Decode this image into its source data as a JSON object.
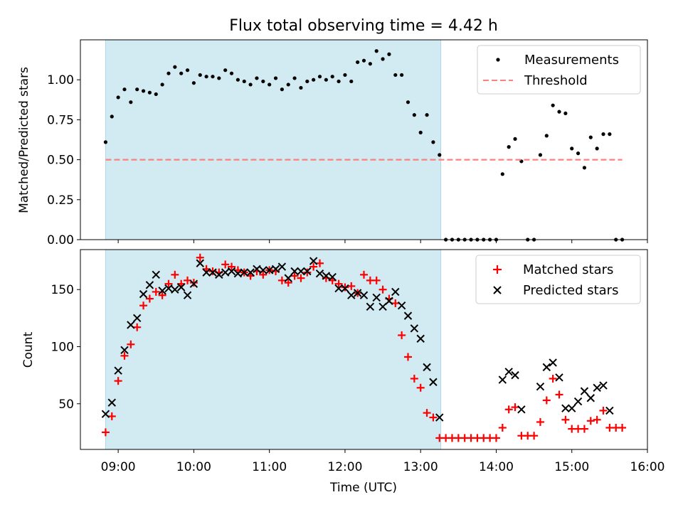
{
  "chart_data": [
    {
      "type": "scatter",
      "title": "Flux total observing time = 4.42 h",
      "ylabel": "Matched/Predicted stars",
      "xlim": [
        "08:30",
        "16:00"
      ],
      "ylim": [
        0,
        1.25
      ],
      "yticks": [
        "0.00",
        "0.25",
        "0.50",
        "0.75",
        "1.00"
      ],
      "ytick_values": [
        0,
        0.25,
        0.5,
        0.75,
        1.0
      ],
      "shaded_region": {
        "start": "08:50",
        "end": "13:16",
        "color": "#add8e6"
      },
      "legend": {
        "position": "top-right",
        "entries": [
          "Measurements",
          "Threshold"
        ]
      },
      "series": [
        {
          "name": "Measurements",
          "marker": "dot",
          "color": "#000000",
          "x": [
            "08:50",
            "08:55",
            "09:00",
            "09:05",
            "09:10",
            "09:15",
            "09:20",
            "09:25",
            "09:30",
            "09:35",
            "09:40",
            "09:45",
            "09:50",
            "09:55",
            "10:00",
            "10:05",
            "10:10",
            "10:15",
            "10:20",
            "10:25",
            "10:30",
            "10:35",
            "10:40",
            "10:45",
            "10:50",
            "10:55",
            "11:00",
            "11:05",
            "11:10",
            "11:15",
            "11:20",
            "11:25",
            "11:30",
            "11:35",
            "11:40",
            "11:45",
            "11:50",
            "11:55",
            "12:00",
            "12:05",
            "12:10",
            "12:15",
            "12:20",
            "12:25",
            "12:30",
            "12:35",
            "12:40",
            "12:45",
            "12:50",
            "12:55",
            "13:00",
            "13:05",
            "13:10",
            "13:15",
            "13:20",
            "13:25",
            "13:30",
            "13:35",
            "13:40",
            "13:45",
            "13:50",
            "13:55",
            "14:00",
            "14:05",
            "14:10",
            "14:15",
            "14:20",
            "14:25",
            "14:30",
            "14:35",
            "14:40",
            "14:45",
            "14:50",
            "14:55",
            "15:00",
            "15:05",
            "15:10",
            "15:15",
            "15:20",
            "15:25",
            "15:30",
            "15:35",
            "15:40"
          ],
          "y": [
            0.61,
            0.77,
            0.89,
            0.94,
            0.86,
            0.94,
            0.93,
            0.92,
            0.91,
            0.97,
            1.04,
            1.08,
            1.04,
            1.06,
            0.98,
            1.03,
            1.02,
            1.02,
            1.01,
            1.06,
            1.04,
            1.0,
            0.99,
            0.97,
            1.01,
            0.99,
            0.97,
            1.01,
            0.94,
            0.97,
            1.01,
            0.95,
            0.99,
            1.0,
            1.02,
            1.0,
            1.02,
            0.99,
            1.03,
            0.99,
            1.11,
            1.12,
            1.1,
            1.18,
            1.13,
            1.16,
            1.03,
            1.03,
            0.86,
            0.78,
            0.67,
            0.78,
            0.61,
            0.53,
            0,
            0,
            0,
            0,
            0,
            0,
            0,
            0,
            0,
            0.41,
            0.58,
            0.63,
            0.49,
            0,
            0,
            0.53,
            0.65,
            0.84,
            0.8,
            0.79,
            0.57,
            0.54,
            0.45,
            0.64,
            0.57,
            0.66,
            0.66,
            0,
            0
          ]
        },
        {
          "name": "Threshold",
          "style": "dashed",
          "color": "#ff7f7f",
          "x": [
            "08:50",
            "15:40"
          ],
          "y": [
            0.5,
            0.5
          ]
        }
      ]
    },
    {
      "type": "scatter",
      "xlabel": "Time (UTC)",
      "ylabel": "Count",
      "xlim": [
        "08:30",
        "16:00"
      ],
      "ylim": [
        10,
        185
      ],
      "xticks": [
        "09:00",
        "10:00",
        "11:00",
        "12:00",
        "13:00",
        "14:00",
        "15:00",
        "16:00"
      ],
      "yticks": [
        "50",
        "100",
        "150"
      ],
      "ytick_values": [
        50,
        100,
        150
      ],
      "shaded_region": {
        "start": "08:50",
        "end": "13:16",
        "color": "#add8e6"
      },
      "legend": {
        "position": "top-right",
        "entries": [
          "Matched stars",
          "Predicted stars"
        ]
      },
      "series": [
        {
          "name": "Matched stars",
          "marker": "plus",
          "color": "#ff0000",
          "x": [
            "08:50",
            "08:55",
            "09:00",
            "09:05",
            "09:10",
            "09:15",
            "09:20",
            "09:25",
            "09:30",
            "09:35",
            "09:40",
            "09:45",
            "09:50",
            "09:55",
            "10:00",
            "10:05",
            "10:10",
            "10:15",
            "10:20",
            "10:25",
            "10:30",
            "10:35",
            "10:40",
            "10:45",
            "10:50",
            "10:55",
            "11:00",
            "11:05",
            "11:10",
            "11:15",
            "11:20",
            "11:25",
            "11:30",
            "11:35",
            "11:40",
            "11:45",
            "11:50",
            "11:55",
            "12:00",
            "12:05",
            "12:10",
            "12:15",
            "12:20",
            "12:25",
            "12:30",
            "12:35",
            "12:40",
            "12:45",
            "12:50",
            "12:55",
            "13:00",
            "13:05",
            "13:10",
            "13:15",
            "13:20",
            "13:25",
            "13:30",
            "13:35",
            "13:40",
            "13:45",
            "13:50",
            "13:55",
            "14:00",
            "14:05",
            "14:10",
            "14:15",
            "14:20",
            "14:25",
            "14:30",
            "14:35",
            "14:40",
            "14:45",
            "14:50",
            "14:55",
            "15:00",
            "15:05",
            "15:10",
            "15:15",
            "15:20",
            "15:25",
            "15:30",
            "15:35",
            "15:40"
          ],
          "y": [
            25,
            39,
            70,
            92,
            102,
            117,
            136,
            142,
            148,
            145,
            155,
            163,
            155,
            158,
            156,
            178,
            168,
            166,
            165,
            172,
            170,
            167,
            165,
            162,
            166,
            163,
            167,
            166,
            158,
            156,
            162,
            160,
            165,
            170,
            173,
            160,
            158,
            155,
            152,
            153,
            147,
            163,
            158,
            158,
            150,
            142,
            138,
            110,
            91,
            72,
            64,
            42,
            38,
            20,
            20,
            20,
            20,
            20,
            20,
            20,
            20,
            20,
            20,
            29,
            45,
            47,
            22,
            22,
            22,
            34,
            53,
            72,
            58,
            36,
            28,
            28,
            28,
            35,
            36,
            44,
            29,
            29,
            29
          ]
        },
        {
          "name": "Predicted stars",
          "marker": "x",
          "color": "#000000",
          "x": [
            "08:50",
            "08:55",
            "09:00",
            "09:05",
            "09:10",
            "09:15",
            "09:20",
            "09:25",
            "09:30",
            "09:35",
            "09:40",
            "09:45",
            "09:50",
            "09:55",
            "10:00",
            "10:05",
            "10:10",
            "10:15",
            "10:20",
            "10:25",
            "10:30",
            "10:35",
            "10:40",
            "10:45",
            "10:50",
            "10:55",
            "11:00",
            "11:05",
            "11:10",
            "11:15",
            "11:20",
            "11:25",
            "11:30",
            "11:35",
            "11:40",
            "11:45",
            "11:50",
            "11:55",
            "12:00",
            "12:05",
            "12:10",
            "12:15",
            "12:20",
            "12:25",
            "12:30",
            "12:35",
            "12:40",
            "12:45",
            "12:50",
            "12:55",
            "13:00",
            "13:05",
            "13:10",
            "13:15",
            "14:05",
            "14:10",
            "14:15",
            "14:20",
            "14:35",
            "14:40",
            "14:45",
            "14:50",
            "14:55",
            "15:00",
            "15:05",
            "15:10",
            "15:15",
            "15:20",
            "15:25",
            "15:30"
          ],
          "y": [
            41,
            51,
            79,
            97,
            119,
            125,
            146,
            154,
            163,
            149,
            151,
            150,
            152,
            145,
            155,
            173,
            165,
            165,
            163,
            165,
            166,
            164,
            165,
            165,
            168,
            167,
            167,
            168,
            170,
            160,
            166,
            166,
            166,
            175,
            164,
            162,
            161,
            151,
            151,
            145,
            147,
            145,
            135,
            143,
            135,
            140,
            148,
            136,
            127,
            116,
            107,
            82,
            69,
            38,
            71,
            78,
            75,
            45,
            65,
            82,
            86,
            73,
            46,
            46,
            52,
            61,
            55,
            64,
            66,
            44
          ]
        }
      ]
    }
  ]
}
